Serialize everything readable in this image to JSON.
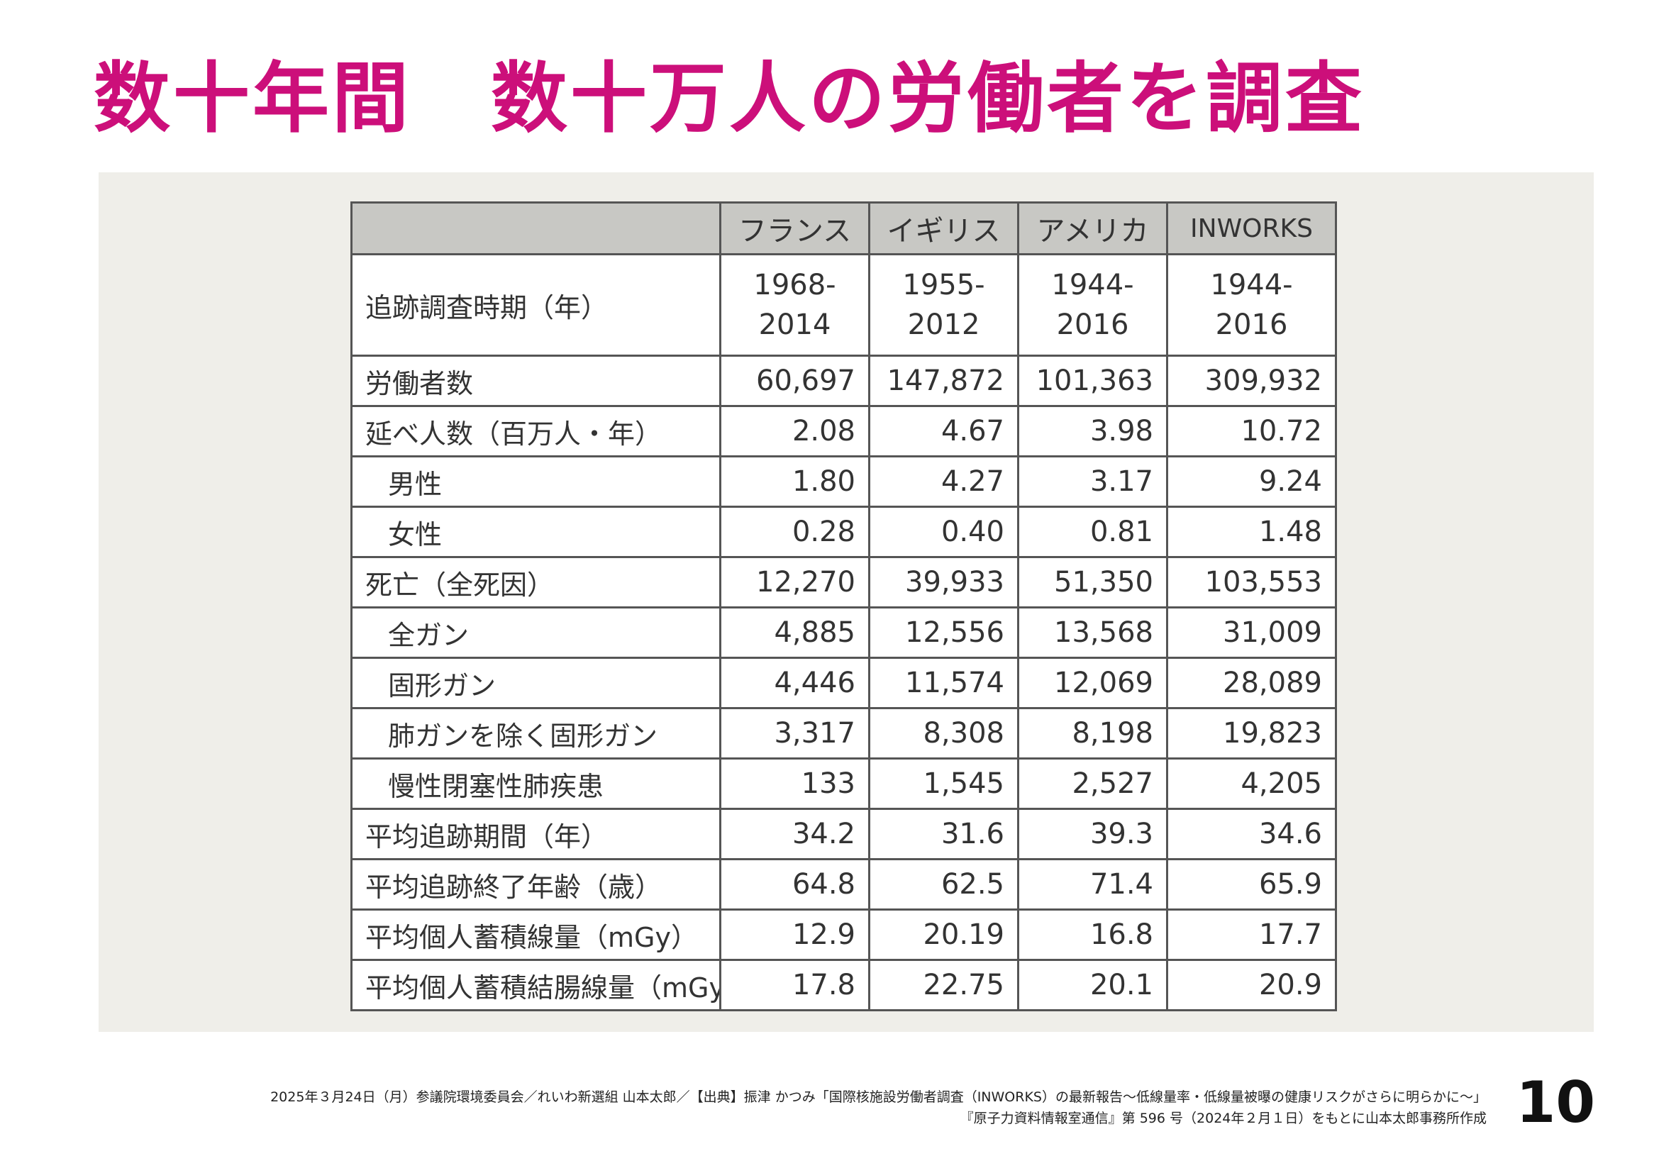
{
  "title": "数十年間　数十万人の労働者を調査",
  "table": {
    "columns": [
      "",
      "フランス",
      "イギリス",
      "アメリカ",
      "INWORKS"
    ],
    "period": {
      "label": "追跡調査時期（年）",
      "values": [
        {
          "from": "1968-",
          "to": "2014"
        },
        {
          "from": "1955-",
          "to": "2012"
        },
        {
          "from": "1944-",
          "to": "2016"
        },
        {
          "from": "1944-",
          "to": "2016"
        }
      ]
    },
    "rows": [
      {
        "label": "労働者数",
        "values": [
          "60,697",
          "147,872",
          "101,363",
          "309,932"
        ]
      },
      {
        "label": "延べ人数（百万人・年）",
        "values": [
          "2.08",
          "4.67",
          "3.98",
          "10.72"
        ]
      },
      {
        "label": "男性",
        "values": [
          "1.80",
          "4.27",
          "3.17",
          "9.24"
        ]
      },
      {
        "label": "女性",
        "values": [
          "0.28",
          "0.40",
          "0.81",
          "1.48"
        ]
      },
      {
        "label": "死亡（全死因）",
        "values": [
          "12,270",
          "39,933",
          "51,350",
          "103,553"
        ]
      },
      {
        "label": "全ガン",
        "values": [
          "4,885",
          "12,556",
          "13,568",
          "31,009"
        ]
      },
      {
        "label": "固形ガン",
        "values": [
          "4,446",
          "11,574",
          "12,069",
          "28,089"
        ]
      },
      {
        "label": "肺ガンを除く固形ガン",
        "values": [
          "3,317",
          "8,308",
          "8,198",
          "19,823"
        ]
      },
      {
        "label": "慢性閉塞性肺疾患",
        "values": [
          "133",
          "1,545",
          "2,527",
          "4,205"
        ]
      },
      {
        "label": "平均追跡期間（年）",
        "values": [
          "34.2",
          "31.6",
          "39.3",
          "34.6"
        ]
      },
      {
        "label": "平均追跡終了年齢（歳）",
        "values": [
          "64.8",
          "62.5",
          "71.4",
          "65.9"
        ]
      },
      {
        "label": "平均個人蓄積線量（mGy）",
        "values": [
          "12.9",
          "20.19",
          "16.8",
          "17.7"
        ]
      },
      {
        "label": "平均個人蓄積結腸線量（mGy）＊",
        "values": [
          "17.8",
          "22.75",
          "20.1",
          "20.9"
        ]
      }
    ]
  },
  "footer": {
    "line1": "2025年３月24日（月）参議院環境委員会／れいわ新選組 山本太郎／【出典】振津 かつみ「国際核施設労働者調査（INWORKS）の最新報告〜低線量率・低線量被曝の健康リスクがさらに明らかに〜」",
    "line2": "『原子力資料情報室通信』第 596 号（2024年２月１日）をもとに山本太郎事務所作成"
  },
  "page_number": "10"
}
